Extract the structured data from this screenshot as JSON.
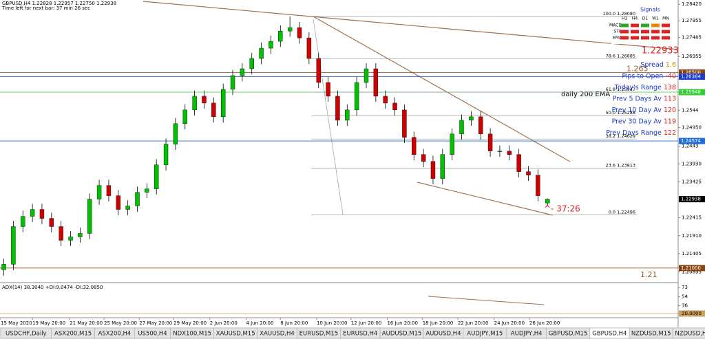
{
  "header": {
    "symbol_line": "GBPUSD,H4  1.22828 1.22957 1.22750 1.22938",
    "timer_line": "Time left for next bar: 37 min 26 sec"
  },
  "chart_data": {
    "type": "candlestick",
    "open": [
      1.2095,
      1.21105,
      1.22167,
      1.22456,
      1.22649,
      1.22398,
      1.22167,
      1.21781,
      1.21877,
      1.21974,
      1.22939,
      1.23325,
      1.23035,
      1.22649,
      1.22746,
      1.23132,
      1.23228,
      1.23904,
      1.24483,
      1.25062,
      1.25448,
      1.25834,
      1.25641,
      1.25255,
      1.26027,
      1.26413,
      1.26606,
      1.26895,
      1.27185,
      1.27378,
      1.27667,
      1.27764,
      1.27474,
      1.26895,
      1.2622,
      1.25834,
      1.25158,
      1.25448,
      1.2622,
      1.26606,
      1.25834,
      1.25641,
      1.25448,
      1.24676,
      1.24193,
      1.24,
      1.23518,
      1.24193,
      1.24772,
      1.25158,
      1.25255,
      1.24772,
      1.2429,
      1.2429,
      1.24193,
      1.23711,
      1.23614,
      1.22828
    ],
    "high": [
      1.21265,
      1.22327,
      1.22616,
      1.22809,
      1.22809,
      1.22558,
      1.22327,
      1.22037,
      1.22134,
      1.23099,
      1.23485,
      1.23485,
      1.23195,
      1.22906,
      1.23292,
      1.23388,
      1.24064,
      1.24643,
      1.25222,
      1.25608,
      1.25994,
      1.25994,
      1.25801,
      1.26187,
      1.26573,
      1.26766,
      1.27055,
      1.27345,
      1.27538,
      1.27827,
      1.2808,
      1.27924,
      1.27634,
      1.27055,
      1.2638,
      1.25994,
      1.25608,
      1.2638,
      1.26766,
      1.26766,
      1.25994,
      1.25801,
      1.25608,
      1.24836,
      1.24353,
      1.2416,
      1.24353,
      1.24932,
      1.25318,
      1.25415,
      1.25415,
      1.24932,
      1.2445,
      1.2445,
      1.24353,
      1.23871,
      1.23774,
      1.22957
    ],
    "low": [
      1.2079,
      1.20945,
      1.22007,
      1.22296,
      1.22238,
      1.22007,
      1.21621,
      1.21621,
      1.21717,
      1.21814,
      1.22779,
      1.22875,
      1.22489,
      1.22489,
      1.22586,
      1.22972,
      1.23068,
      1.23744,
      1.24323,
      1.24902,
      1.25288,
      1.25481,
      1.25095,
      1.25095,
      1.25867,
      1.26253,
      1.26446,
      1.26735,
      1.27025,
      1.27218,
      1.27507,
      1.27314,
      1.26735,
      1.2606,
      1.25674,
      1.24998,
      1.24998,
      1.25288,
      1.2606,
      1.25674,
      1.25481,
      1.25288,
      1.24516,
      1.24033,
      1.2384,
      1.23358,
      1.23358,
      1.24033,
      1.24612,
      1.24998,
      1.24612,
      1.2413,
      1.2413,
      1.24033,
      1.23551,
      1.23454,
      1.22875,
      1.2275
    ],
    "close": [
      1.21105,
      1.22167,
      1.22456,
      1.22649,
      1.22398,
      1.22167,
      1.21781,
      1.21877,
      1.21974,
      1.22939,
      1.23325,
      1.23035,
      1.22649,
      1.22746,
      1.23132,
      1.23228,
      1.23904,
      1.24483,
      1.25062,
      1.25448,
      1.25834,
      1.25641,
      1.25255,
      1.26027,
      1.26413,
      1.26606,
      1.26895,
      1.27185,
      1.27378,
      1.27667,
      1.27764,
      1.27474,
      1.26895,
      1.2622,
      1.25834,
      1.25158,
      1.25448,
      1.2622,
      1.26606,
      1.25834,
      1.25641,
      1.25448,
      1.24676,
      1.24193,
      1.24,
      1.23518,
      1.24193,
      1.24772,
      1.25158,
      1.25255,
      1.24772,
      1.2429,
      1.2429,
      1.24193,
      1.23711,
      1.23614,
      1.23035,
      1.22938
    ],
    "up_color": "#00c000",
    "down_color": "#d00000",
    "xlim": [
      -0.4,
      70.7
    ],
    "xticks": [
      {
        "value": -0.4,
        "label": "15 May 2020"
      },
      {
        "value": 3.0,
        "label": "19 May 20:00"
      },
      {
        "value": 6.9,
        "label": "21 May 20:00"
      },
      {
        "value": 10.5,
        "label": "25 May 20:00"
      },
      {
        "value": 14.2,
        "label": "27 May 20:00"
      },
      {
        "value": 17.8,
        "label": "29 May 20:00"
      },
      {
        "value": 21.6,
        "label": "2 Jun 20:00"
      },
      {
        "value": 25.4,
        "label": "4 Jun 20:00"
      },
      {
        "value": 29.0,
        "label": "8 Jun 20:00"
      },
      {
        "value": 32.8,
        "label": "10 Jun 20:00"
      },
      {
        "value": 36.4,
        "label": "12 Jun 20:00"
      },
      {
        "value": 40.2,
        "label": "16 Jun 20:00"
      },
      {
        "value": 43.9,
        "label": "18 Jun 20:00"
      },
      {
        "value": 47.6,
        "label": "22 Jun 20:00"
      },
      {
        "value": 51.4,
        "label": "24 Jun 20:00"
      },
      {
        "value": 55.1,
        "label": "26 Jun 20:00"
      }
    ],
    "ylim": [
      1.2061,
      1.2854
    ],
    "yticks": [
      {
        "value": 1.2842,
        "label": "1.28420"
      },
      1.27955,
      1.27485,
      1.26955,
      1.2544,
      {
        "value": 1.2495,
        "label": "1.24950"
      },
      1.2443,
      {
        "value": 1.2393,
        "label": "1.23930"
      },
      1.23425,
      1.22415,
      {
        "value": 1.2191,
        "label": "1.21910"
      },
      1.21405,
      1.20895
    ],
    "price_markers": [
      {
        "value": 1.265,
        "label": "1.26500",
        "color": "#8b4513",
        "line": true
      },
      {
        "value": 1.26384,
        "label": "1.26384",
        "color": "#1a3cc8",
        "line": true
      },
      {
        "value": 1.25948,
        "label": "1.25948",
        "color": "#33cc33",
        "line": true
      },
      {
        "value": 1.24574,
        "label": "1.24574",
        "color": "#1e6fd9",
        "line": true
      },
      {
        "value": 1.22938,
        "label": "1.22938",
        "color": "#000000",
        "line": false
      },
      {
        "value": 1.21,
        "label": "1.21000",
        "color": "#8b4513",
        "line": true
      }
    ],
    "level_labels": [
      {
        "value": 1.265,
        "color": "#8b5a2b"
      },
      {
        "value": 1.21,
        "color": "#8b5a2b"
      }
    ],
    "fib_levels": [
      {
        "value": 1.2808,
        "label": "100.0  1.28080"
      },
      {
        "value": 1.26885,
        "label": "78.6  1.26885"
      },
      {
        "value": 1.25947,
        "label": "61.8  1.25947"
      },
      {
        "value": 1.25288,
        "label": "50.0  1.25288"
      },
      {
        "value": 1.24629,
        "label": "38.2  1.24629"
      },
      {
        "value": 1.23813,
        "label": "23.6  1.23813"
      },
      {
        "value": 1.22496,
        "label": "0.0  1.22496"
      }
    ],
    "ema_label": "daily 200 EMA",
    "countdown": "^- 37:26"
  },
  "info_panel": {
    "price": 1.22933,
    "rows": [
      {
        "label": "Spread",
        "value": 1.6
      },
      {
        "label": "Pips to Open",
        "value": -40
      },
      {
        "label": "Today's Range",
        "value": 138
      },
      {
        "label": "Prev 5 Days Av",
        "value": 113
      },
      {
        "label": "Prev 10 Day Av",
        "value": 120
      },
      {
        "label": "Prev 30 Day Av",
        "value": 119
      },
      {
        "label": "Prev Days Range",
        "value": 122
      }
    ]
  },
  "signals": {
    "title": "Signals",
    "columns": [
      "H1",
      "H4",
      "D1",
      "W1",
      "MN"
    ],
    "rows": [
      {
        "name": "MACD",
        "colors": [
          "#22aa22",
          "#dd2222",
          "#22aa22",
          "#e08a00",
          "#dd2222"
        ]
      },
      {
        "name": "STR",
        "colors": [
          "#dd2222",
          "#dd2222",
          "#dd2222",
          "#dd2222",
          "#dd2222"
        ]
      },
      {
        "name": "EMA",
        "colors": [
          "#dd2222",
          "#dd2222",
          "#dd2222",
          "#dd2222",
          "#dd2222"
        ]
      }
    ]
  },
  "indicator": {
    "title": "ADX(14) 38.3040 +DI:9.0474 -DI:32.0850",
    "ylim": [
      11.6,
      81.4
    ],
    "yticks": [
      73,
      54,
      36,
      {
        "value": 20,
        "label": "20.0000"
      }
    ]
  },
  "tabs": [
    "USDCHF,Daily",
    "ASX200,M15",
    "ASX200,H4",
    "US500,H4",
    "NDX100,M15",
    "XAUUSD,M15",
    "XAUUSD,H4",
    "EURUSD,M15",
    "EURUSD,H4",
    "AUDUSD,M15",
    "AUDUSD,H4",
    "AUDJPY,M15",
    "AUDJPY,H4",
    "GBPUSD,M15",
    "GBPUSD,H4",
    "NZDUSD,M15",
    "NZDUSD,H4"
  ],
  "active_tab": "GBPUSD,H4"
}
